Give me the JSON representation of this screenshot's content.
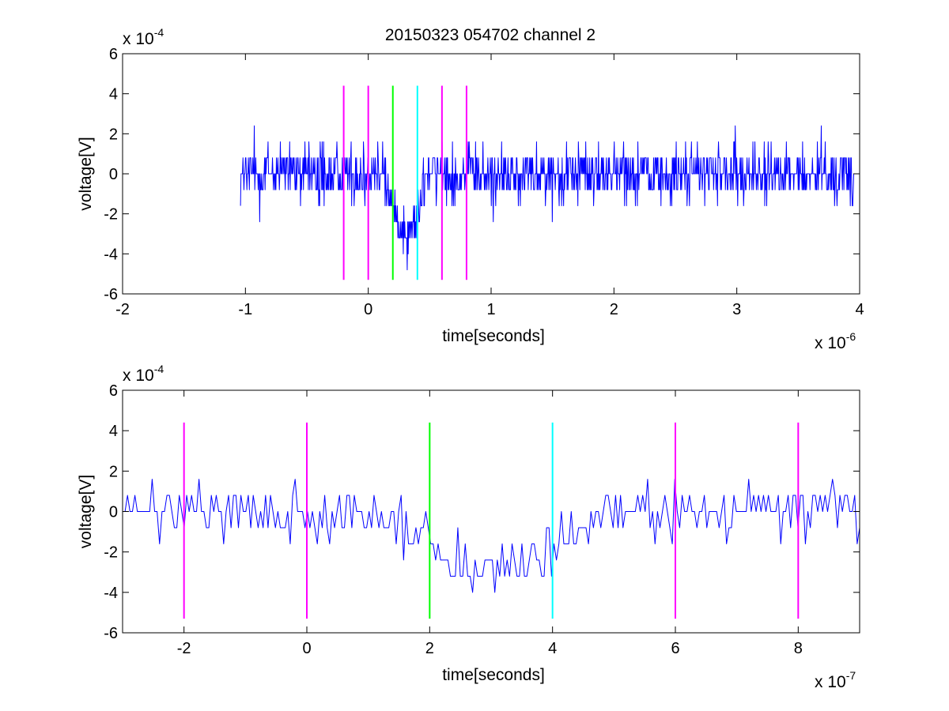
{
  "figure": {
    "title": "20150323 054702 channel 2"
  },
  "chart_data": [
    {
      "type": "line",
      "panel": "top",
      "xlabel": "time[seconds]",
      "ylabel": "voltage[V]",
      "xlim": [
        -2e-06,
        4e-06
      ],
      "ylim": [
        -0.0006,
        0.0006
      ],
      "x_ticks": [
        -2,
        -1,
        0,
        1,
        2,
        3,
        4
      ],
      "y_ticks": [
        -6,
        -4,
        -2,
        0,
        2,
        4,
        6
      ],
      "x_tick_labels": [
        "-2",
        "-1",
        "0",
        "1",
        "2",
        "3",
        "4"
      ],
      "y_tick_labels": [
        "-6",
        "-4",
        "-2",
        "0",
        "2",
        "4",
        "6"
      ],
      "x_exponent": {
        "base": "x 10",
        "power": "-6"
      },
      "y_exponent": {
        "base": "x 10",
        "power": "-4"
      },
      "x_scale": 1e-06,
      "y_scale": 0.0001,
      "grid": false,
      "series": [
        {
          "color": "#0000ff",
          "x_range": [
            -1.04e-06,
            3.96e-06
          ],
          "samples": 1250,
          "baseline_units": 0,
          "noise_levels_units": [
            -2.4,
            -1.6,
            -0.8,
            0,
            0.8,
            1.6,
            2.4
          ],
          "dip": {
            "start": 1.2e-07,
            "min_at": 3.2e-07,
            "end": 4.8e-07,
            "depth_units": -2.8
          }
        }
      ],
      "markers": [
        {
          "x": -2e-07,
          "color": "#ff00ff",
          "y_range": [
            -0.00053,
            0.00044
          ]
        },
        {
          "x": 0,
          "color": "#ff00ff",
          "y_range": [
            -0.00053,
            0.00044
          ]
        },
        {
          "x": 2e-07,
          "color": "#00ff00",
          "y_range": [
            -0.00053,
            0.00044
          ]
        },
        {
          "x": 4e-07,
          "color": "#00ffff",
          "y_range": [
            -0.00053,
            0.00044
          ]
        },
        {
          "x": 6e-07,
          "color": "#ff00ff",
          "y_range": [
            -0.00053,
            0.00044
          ]
        },
        {
          "x": 8e-07,
          "color": "#ff00ff",
          "y_range": [
            -0.00053,
            0.00044
          ]
        }
      ]
    },
    {
      "type": "line",
      "panel": "bottom",
      "xlabel": "time[seconds]",
      "ylabel": "voltage[V]",
      "xlim": [
        -3e-07,
        9e-07
      ],
      "ylim": [
        -0.0006,
        0.0006
      ],
      "x_ticks": [
        -2,
        0,
        2,
        4,
        6,
        8
      ],
      "y_ticks": [
        -6,
        -4,
        -2,
        0,
        2,
        4,
        6
      ],
      "x_tick_labels": [
        "-2",
        "0",
        "2",
        "4",
        "6",
        "8"
      ],
      "y_tick_labels": [
        "-6",
        "-4",
        "-2",
        "0",
        "2",
        "4",
        "6"
      ],
      "x_exponent": {
        "base": "x 10",
        "power": "-7"
      },
      "y_exponent": {
        "base": "x 10",
        "power": "-4"
      },
      "x_scale": 1e-07,
      "y_scale": 0.0001,
      "grid": false,
      "series": [
        {
          "color": "#0000ff",
          "x_range": [
            -3e-07,
            9e-07
          ],
          "samples": 300,
          "baseline_units": 0,
          "noise_levels_units": [
            -2.4,
            -1.6,
            -0.8,
            0,
            0.8,
            1.6,
            2.4
          ],
          "dip": {
            "start": 1.2e-07,
            "min_at": 3.2e-07,
            "end": 4.8e-07,
            "depth_units": -2.8
          }
        }
      ],
      "markers": [
        {
          "x": -2e-07,
          "color": "#ff00ff",
          "y_range": [
            -0.00053,
            0.00044
          ]
        },
        {
          "x": 0,
          "color": "#ff00ff",
          "y_range": [
            -0.00053,
            0.00044
          ]
        },
        {
          "x": 2e-07,
          "color": "#00ff00",
          "y_range": [
            -0.00053,
            0.00044
          ]
        },
        {
          "x": 4e-07,
          "color": "#00ffff",
          "y_range": [
            -0.00053,
            0.00044
          ]
        },
        {
          "x": 6e-07,
          "color": "#ff00ff",
          "y_range": [
            -0.00053,
            0.00044
          ]
        },
        {
          "x": 8e-07,
          "color": "#ff00ff",
          "y_range": [
            -0.00053,
            0.00044
          ]
        }
      ]
    }
  ]
}
